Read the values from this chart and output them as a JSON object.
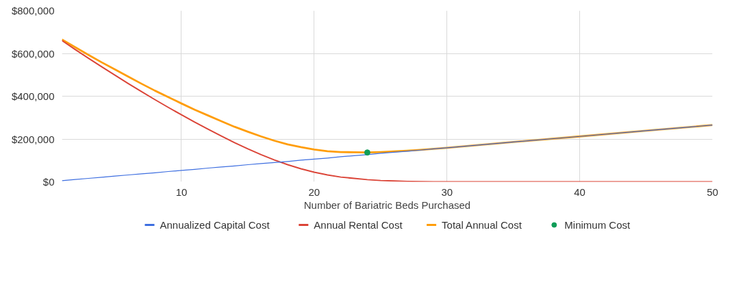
{
  "chart_data": {
    "type": "line",
    "xlabel": "Number of Bariatric Beds Purchased",
    "x": [
      1,
      2,
      3,
      4,
      5,
      6,
      7,
      8,
      9,
      10,
      11,
      12,
      13,
      14,
      15,
      16,
      17,
      18,
      19,
      20,
      21,
      22,
      23,
      24,
      25,
      26,
      27,
      28,
      29,
      30,
      35,
      40,
      45,
      50
    ],
    "series": [
      {
        "name": "Annualized Capital Cost",
        "color": "#3d6ee0",
        "values": [
          5000,
          11000,
          16000,
          21000,
          27000,
          32000,
          37000,
          42000,
          48000,
          53000,
          58000,
          64000,
          69000,
          74000,
          80000,
          85000,
          90000,
          95000,
          101000,
          106000,
          111000,
          117000,
          122000,
          127000,
          133000,
          138000,
          143000,
          148000,
          154000,
          159000,
          186000,
          212000,
          239000,
          265000
        ]
      },
      {
        "name": "Annual Rental Cost",
        "color": "#db4437",
        "values": [
          660000,
          618000,
          577000,
          537000,
          498000,
          459000,
          421000,
          384000,
          348000,
          313000,
          279000,
          246000,
          214000,
          183000,
          154000,
          127000,
          102000,
          80000,
          61000,
          45000,
          32000,
          22000,
          16000,
          10000,
          6000,
          4000,
          2000,
          1000,
          0,
          0,
          0,
          0,
          0,
          0
        ]
      },
      {
        "name": "Total Annual Cost",
        "color": "#ff9d0a",
        "values": [
          665000,
          629000,
          593000,
          558000,
          525000,
          491000,
          458000,
          426000,
          396000,
          366000,
          337000,
          310000,
          283000,
          257000,
          234000,
          212000,
          192000,
          175000,
          162000,
          151000,
          143000,
          139000,
          138000,
          137000,
          139000,
          142000,
          145000,
          149000,
          154000,
          159000,
          186000,
          212000,
          239000,
          265000
        ]
      },
      {
        "name": "Minimum Cost",
        "type": "scatter",
        "color": "#0f9d58",
        "x": [
          24
        ],
        "values": [
          137000
        ]
      }
    ],
    "xlim": [
      1,
      50
    ],
    "xticks": [
      10,
      20,
      30,
      40,
      50
    ],
    "ylim": [
      0,
      800000
    ],
    "yticks": [
      {
        "value": 0,
        "label": "$0"
      },
      {
        "value": 200000,
        "label": "$200,000"
      },
      {
        "value": 400000,
        "label": "$400,000"
      },
      {
        "value": 600000,
        "label": "$600,000"
      },
      {
        "value": 800000,
        "label": "$800,000"
      }
    ],
    "grid": true,
    "legend": "bottom"
  }
}
